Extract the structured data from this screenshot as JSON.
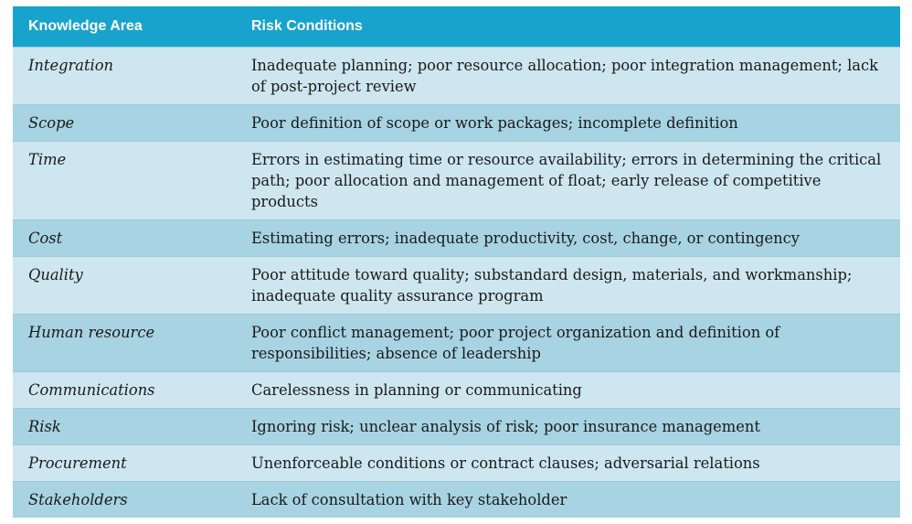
{
  "table": {
    "headers": {
      "area": "Knowledge Area",
      "conditions": "Risk Conditions"
    },
    "rows": [
      {
        "area": "Integration",
        "conditions": "Inadequate planning; poor resource allocation; poor integration management; lack of post-project review"
      },
      {
        "area": "Scope",
        "conditions": "Poor definition of scope or work packages; incomplete definition"
      },
      {
        "area": "Time",
        "conditions": "Errors in estimating time or resource availability; errors in determining the critical path; poor allocation and management of float; early release of competitive products"
      },
      {
        "area": "Cost",
        "conditions": "Estimating errors; inadequate productivity, cost, change, or contingency"
      },
      {
        "area": "Quality",
        "conditions": "Poor attitude toward quality; substandard design, materials, and workmanship; inadequate quality assurance program"
      },
      {
        "area": "Human resource",
        "conditions": "Poor conflict management; poor project organization and definition of responsibilities; absence of leadership"
      },
      {
        "area": "Communications",
        "conditions": "Carelessness in planning or communicating"
      },
      {
        "area": "Risk",
        "conditions": "Ignoring risk; unclear analysis of risk; poor insurance management"
      },
      {
        "area": "Procurement",
        "conditions": "Unenforceable conditions or contract clauses; adversarial relations"
      },
      {
        "area": "Stakeholders",
        "conditions": "Lack of consultation with key stakeholder"
      }
    ]
  },
  "colors": {
    "header_bg": "#18a3cc",
    "row_light": "#cde6ef",
    "row_dark": "#a7d3e2"
  }
}
